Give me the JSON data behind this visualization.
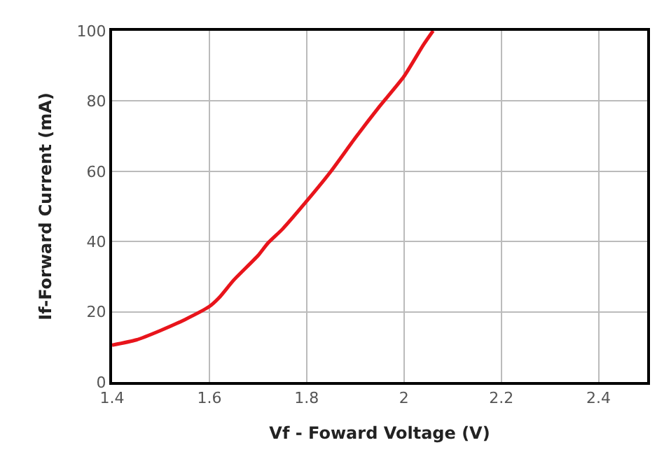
{
  "chart_data": {
    "type": "line",
    "xlabel": "Vf - Foward Voltage (V)",
    "ylabel": "If-Forward Current (mA)",
    "x": [
      1.4,
      1.45,
      1.5,
      1.55,
      1.6,
      1.62,
      1.65,
      1.7,
      1.72,
      1.75,
      1.8,
      1.85,
      1.9,
      1.95,
      2.0,
      2.04,
      2.06
    ],
    "series": [
      {
        "color": "#e8141b",
        "values": [
          10.5,
          12,
          14.7,
          17.8,
          21.5,
          24,
          29,
          36,
          39.5,
          43.5,
          51.5,
          60,
          69.5,
          78.5,
          87,
          96,
          100
        ]
      }
    ],
    "xlim": [
      1.4,
      2.5
    ],
    "xticks": [
      1.4,
      1.6,
      1.8,
      2,
      2.2,
      2.4
    ],
    "ylim": [
      0,
      100
    ],
    "yticks": [
      0,
      20,
      40,
      60,
      80,
      100
    ],
    "grid": true,
    "legend": false,
    "marker": "none",
    "line_style": "solid"
  }
}
